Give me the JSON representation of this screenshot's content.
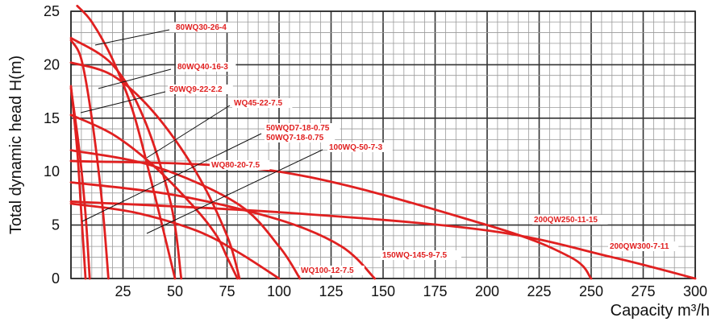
{
  "chart_data": {
    "type": "line",
    "xlabel": "Capacity m³/h",
    "ylabel": "Total dynamic head H(m)",
    "xlim": [
      0,
      300
    ],
    "ylim": [
      0,
      25
    ],
    "xticks": [
      "25",
      "50",
      "75",
      "100",
      "125",
      "150",
      "175",
      "200",
      "225",
      "250",
      "275",
      "300"
    ],
    "yticks": [
      "0",
      "5",
      "10",
      "15",
      "20",
      "25"
    ],
    "grid": true,
    "series_color": "#e02020",
    "series": [
      {
        "name": "80WQ30-26-4",
        "x": [
          3,
          10,
          20,
          30,
          40,
          50
        ],
        "y": [
          25.5,
          24,
          20.5,
          15.5,
          8,
          0
        ]
      },
      {
        "name": "80WQ40-16-3",
        "x": [
          0,
          20,
          40,
          60,
          75,
          81
        ],
        "y": [
          20.2,
          19,
          15.5,
          10,
          4,
          0
        ]
      },
      {
        "name": "50WQ9-22-2.2",
        "x": [
          0,
          5,
          10,
          15,
          18
        ],
        "y": [
          22.3,
          20.5,
          15,
          7,
          0
        ]
      },
      {
        "name": "WQ45-22-7.5",
        "x": [
          0,
          20,
          35,
          48,
          53
        ],
        "y": [
          22.5,
          20,
          15,
          7,
          0
        ]
      },
      {
        "name": "50WQD7-18-0.75",
        "x": [
          0,
          4,
          7,
          9
        ],
        "y": [
          17.8,
          12,
          6,
          0
        ]
      },
      {
        "name": "50WQ7-18-0.75",
        "x": [
          0,
          3,
          5,
          7
        ],
        "y": [
          18,
          12,
          6,
          0
        ]
      },
      {
        "name": "100WQ-50-7-3",
        "x": [
          0,
          30,
          60,
          80,
          100
        ],
        "y": [
          7,
          6.2,
          4.5,
          2.5,
          0
        ]
      },
      {
        "name": "WQ80-20-7.5",
        "x": [
          0,
          20,
          40,
          60,
          70,
          75,
          80
        ],
        "y": [
          15.3,
          13.5,
          10.5,
          6.5,
          4,
          2,
          0
        ]
      },
      {
        "name": "150WQ-145-9-7.5",
        "x": [
          0,
          50,
          100,
          130,
          146
        ],
        "y": [
          9,
          7.8,
          5.5,
          3,
          0
        ]
      },
      {
        "name": "200QW250-11-15",
        "x": [
          0,
          100,
          200,
          240,
          250
        ],
        "y": [
          11,
          10,
          5,
          2,
          0
        ]
      },
      {
        "name": "200QW300-7-11",
        "x": [
          0,
          100,
          200,
          260,
          300
        ],
        "y": [
          7.2,
          6.2,
          4.5,
          2,
          0
        ]
      },
      {
        "name": "WQ100-12-7.5",
        "x": [
          0,
          40,
          80,
          100,
          110
        ],
        "y": [
          12,
          10.5,
          7,
          3,
          0
        ]
      }
    ]
  }
}
